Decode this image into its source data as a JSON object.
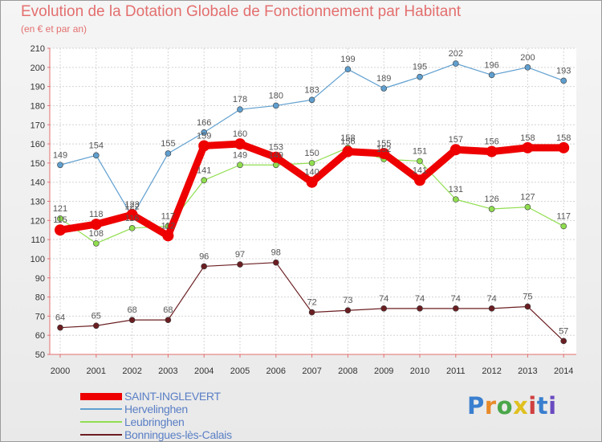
{
  "header": {
    "title": "Evolution de la Dotation Globale de Fonctionnement par Habitant",
    "subtitle": "(en € et par an)"
  },
  "logo": {
    "text": "Proxiti",
    "colors": [
      "#3a7fcf",
      "#e88a2a",
      "#4aa64a",
      "#e0c020",
      "#d04040",
      "#3a7fcf",
      "#6a4ac0"
    ]
  },
  "chart_data": {
    "type": "line",
    "title": "Evolution de la Dotation Globale de Fonctionnement par Habitant",
    "subtitle": "(en € et par an)",
    "xlabel": "",
    "ylabel": "",
    "x": [
      "2000",
      "2001",
      "2002",
      "2003",
      "2004",
      "2005",
      "2006",
      "2007",
      "2008",
      "2009",
      "2010",
      "2011",
      "2012",
      "2013",
      "2014"
    ],
    "yticks": [
      50,
      60,
      70,
      80,
      90,
      100,
      110,
      120,
      130,
      140,
      150,
      160,
      170,
      180,
      190,
      200,
      210
    ],
    "ylim": [
      50,
      210
    ],
    "grid": true,
    "legend": "bottom-left",
    "series": [
      {
        "name": "SAINT-INGLEVERT",
        "color": "#ee0000",
        "values": [
          115,
          118,
          123,
          112,
          159,
          160,
          153,
          140,
          156,
          155,
          141,
          157,
          156,
          158,
          158
        ]
      },
      {
        "name": "Hervelinghen",
        "color": "#5f9fcf",
        "values": [
          149,
          154,
          122,
          155,
          166,
          178,
          180,
          183,
          199,
          189,
          195,
          202,
          196,
          200,
          193
        ]
      },
      {
        "name": "Leubringhen",
        "color": "#90de50",
        "values": [
          121,
          108,
          116,
          117,
          141,
          149,
          149,
          150,
          158,
          152,
          151,
          131,
          126,
          127,
          117
        ]
      },
      {
        "name": "Bonningues-lès-Calais",
        "color": "#6b1e22",
        "values": [
          64,
          65,
          68,
          68,
          96,
          97,
          98,
          72,
          73,
          74,
          74,
          74,
          74,
          75,
          57
        ]
      }
    ]
  }
}
